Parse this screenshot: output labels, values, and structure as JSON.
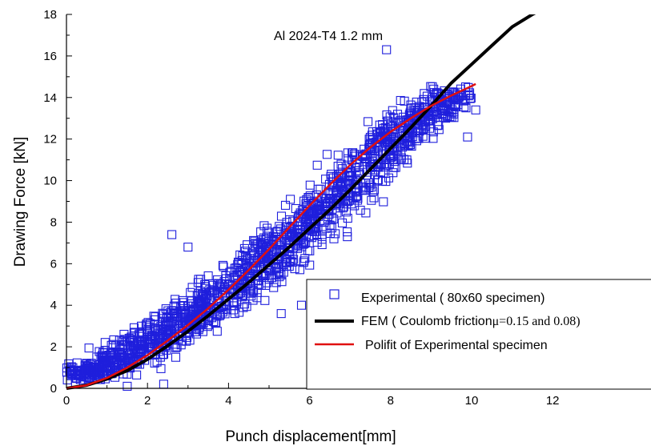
{
  "chart_data": {
    "type": "scatter",
    "annotation": "Al 2024-T4 1.2 mm",
    "xlabel": "Punch displacement[mm]",
    "ylabel": "Drawing Force [kN]",
    "xlim": [
      0,
      14
    ],
    "ylim": [
      0,
      18
    ],
    "x_ticks": [
      0,
      2,
      4,
      6,
      8,
      10,
      12
    ],
    "y_ticks": [
      0,
      2,
      4,
      6,
      8,
      10,
      12,
      14,
      16,
      18
    ],
    "grid": false,
    "legend_position": "bottom-right",
    "series": [
      {
        "name": "Experimental ( 80x60 specimen)",
        "type": "scatter",
        "marker": "open-square",
        "color": "#1f1fdc",
        "band_center": [
          [
            0,
            0.6
          ],
          [
            1,
            1.0
          ],
          [
            2,
            2.1
          ],
          [
            3,
            3.3
          ],
          [
            4,
            4.7
          ],
          [
            5,
            6.3
          ],
          [
            6,
            8.0
          ],
          [
            7,
            9.9
          ],
          [
            8,
            11.9
          ],
          [
            9,
            13.5
          ],
          [
            9.5,
            14.2
          ]
        ],
        "band_spread_x_mm": 1.6,
        "approx_point_count": 1600,
        "outliers": [
          [
            7.9,
            16.3
          ],
          [
            10.1,
            13.4
          ],
          [
            2.6,
            7.4
          ],
          [
            5.3,
            3.6
          ],
          [
            5.8,
            4.0
          ],
          [
            9.9,
            12.1
          ],
          [
            2.4,
            0.2
          ],
          [
            6.6,
            7.2
          ],
          [
            3.0,
            6.8
          ],
          [
            1.5,
            0.1
          ]
        ]
      },
      {
        "name": "FEM ( Coulomb friction",
        "name_suffix": "μ=0.15 and 0.08)",
        "type": "line",
        "color": "#000000",
        "x": [
          0,
          0.5,
          1,
          1.5,
          2,
          2.5,
          3,
          3.5,
          4,
          4.5,
          5,
          5.5,
          6,
          6.5,
          7,
          7.5,
          8,
          8.5,
          9,
          9.5,
          10,
          10.5,
          11,
          11.5,
          12
        ],
        "y": [
          0,
          0.15,
          0.45,
          0.85,
          1.4,
          2.05,
          2.75,
          3.5,
          4.3,
          5.1,
          5.95,
          6.8,
          7.7,
          8.6,
          9.55,
          10.55,
          11.55,
          12.55,
          13.6,
          14.7,
          15.6,
          16.5,
          17.4,
          18.0,
          18.6
        ]
      },
      {
        "name": "Polifit of Experimental specimen",
        "type": "line",
        "color": "#e01010",
        "x": [
          0,
          0.5,
          1,
          1.5,
          2,
          2.5,
          3,
          3.5,
          4,
          4.5,
          5,
          5.5,
          6,
          6.5,
          7,
          7.5,
          8,
          8.5,
          9,
          9.5,
          10,
          10.1
        ],
        "y": [
          0,
          0.15,
          0.5,
          1.0,
          1.6,
          2.3,
          3.05,
          3.85,
          4.75,
          5.7,
          6.7,
          7.75,
          8.8,
          9.8,
          10.75,
          11.6,
          12.35,
          13.0,
          13.6,
          14.1,
          14.55,
          14.65
        ]
      }
    ]
  }
}
